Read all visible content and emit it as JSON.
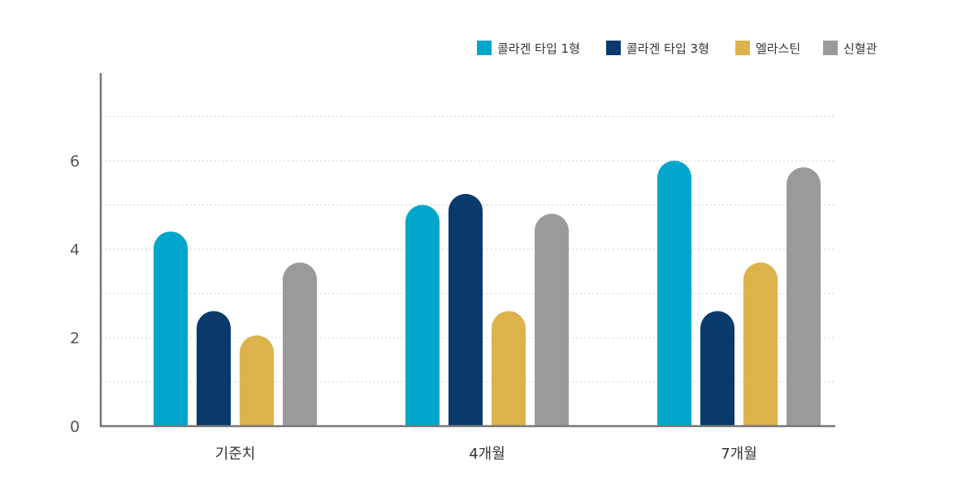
{
  "chart_data": {
    "type": "bar",
    "categories": [
      "기준치",
      "4개월",
      "7개월"
    ],
    "series": [
      {
        "name": "콜라겐 타입 1형",
        "color": "#00a6cb",
        "values": [
          4.4,
          5.0,
          6.0
        ]
      },
      {
        "name": "콜라겐 타입 3형",
        "color": "#0a3a6b",
        "values": [
          2.6,
          5.25,
          2.6
        ]
      },
      {
        "name": "엘라스틴",
        "color": "#dcb24a",
        "values": [
          2.05,
          2.6,
          3.7
        ]
      },
      {
        "name": "신혈관",
        "color": "#9a9a9a",
        "values": [
          3.7,
          4.8,
          5.85
        ]
      }
    ],
    "yticks": [
      "0",
      "2",
      "4",
      "6"
    ],
    "ylim": [
      0,
      8
    ],
    "grid": true,
    "legend_position": "top-right",
    "title": "",
    "xlabel": "",
    "ylabel": ""
  }
}
